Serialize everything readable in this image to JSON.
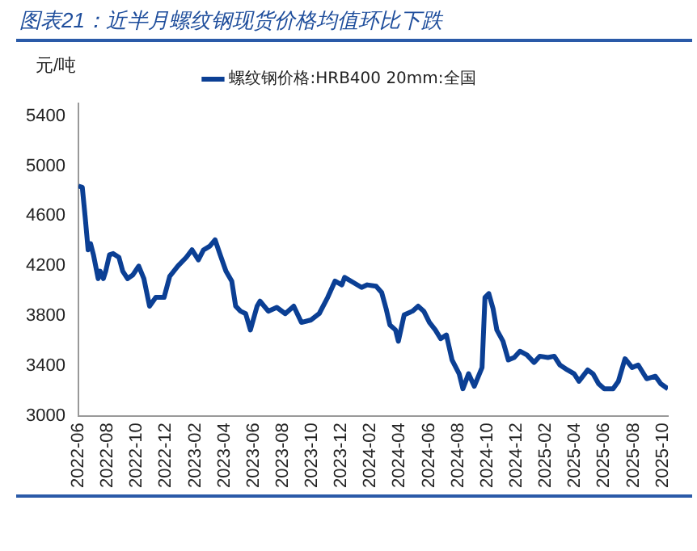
{
  "chart_data": {
    "type": "line",
    "title": "图表21：近半月螺纹钢现货价格均值环比下跌",
    "ylabel": "元/吨",
    "legend": "top",
    "xlim": [
      "2022-06",
      "2025-10-12"
    ],
    "xticks": [
      "2022-06",
      "2022-08",
      "2022-10",
      "2022-12",
      "2023-02",
      "2023-04",
      "2023-06",
      "2023-08",
      "2023-10",
      "2023-12",
      "2024-02",
      "2024-04",
      "2024-06",
      "2024-08",
      "2024-10",
      "2024-12",
      "2025-02",
      "2025-04",
      "2025-06",
      "2025-08",
      "2025-10"
    ],
    "ylim": [
      3000,
      5500
    ],
    "yticks": [
      3000,
      3400,
      3800,
      4200,
      4600,
      5000,
      5400
    ],
    "grid": false,
    "marker": "none",
    "line_style": "solid",
    "series": [
      {
        "name": "螺纹钢价格:HRB400 20mm:全国",
        "color": "#0b3f94",
        "x": [
          "2022-06-01",
          "2022-06-09",
          "2022-06-15",
          "2022-06-21",
          "2022-06-26",
          "2022-07-02",
          "2022-07-12",
          "2022-07-16",
          "2022-07-23",
          "2022-07-28",
          "2022-08-05",
          "2022-08-13",
          "2022-08-25",
          "2022-09-02",
          "2022-09-12",
          "2022-09-23",
          "2022-10-05",
          "2022-10-16",
          "2022-10-28",
          "2022-11-10",
          "2022-11-27",
          "2022-12-09",
          "2022-12-26",
          "2023-01-13",
          "2023-01-25",
          "2023-02-07",
          "2023-02-17",
          "2023-03-01",
          "2023-03-12",
          "2023-03-23",
          "2023-04-04",
          "2023-04-16",
          "2023-04-24",
          "2023-05-04",
          "2023-05-15",
          "2023-05-25",
          "2023-06-08",
          "2023-06-14",
          "2023-07-01",
          "2023-07-19",
          "2023-08-06",
          "2023-08-24",
          "2023-09-09",
          "2023-09-29",
          "2023-10-16",
          "2023-11-03",
          "2023-11-18",
          "2023-12-02",
          "2023-12-08",
          "2023-12-26",
          "2024-01-13",
          "2024-01-25",
          "2024-02-12",
          "2024-02-23",
          "2024-03-03",
          "2024-03-11",
          "2024-03-23",
          "2024-03-29",
          "2024-04-10",
          "2024-04-27",
          "2024-05-09",
          "2024-05-21",
          "2024-06-02",
          "2024-06-14",
          "2024-06-25",
          "2024-07-07",
          "2024-07-19",
          "2024-08-03",
          "2024-08-11",
          "2024-08-23",
          "2024-09-04",
          "2024-09-20",
          "2024-09-26",
          "2024-10-04",
          "2024-10-13",
          "2024-10-21",
          "2024-11-03",
          "2024-11-14",
          "2024-11-26",
          "2024-12-08",
          "2024-12-23",
          "2025-01-07",
          "2025-01-19",
          "2025-02-05",
          "2025-02-17",
          "2025-02-28",
          "2025-03-16",
          "2025-03-30",
          "2025-04-09",
          "2025-04-27",
          "2025-05-08",
          "2025-05-20",
          "2025-06-01",
          "2025-06-19",
          "2025-06-30",
          "2025-07-14",
          "2025-07-29",
          "2025-08-11",
          "2025-08-29",
          "2025-09-16",
          "2025-09-27",
          "2025-10-12"
        ],
        "values": [
          4840,
          4830,
          4590,
          4330,
          4380,
          4290,
          4100,
          4160,
          4100,
          4160,
          4290,
          4300,
          4270,
          4160,
          4100,
          4130,
          4200,
          4100,
          3880,
          3950,
          3950,
          4120,
          4200,
          4270,
          4330,
          4250,
          4330,
          4360,
          4410,
          4290,
          4160,
          4080,
          3880,
          3840,
          3820,
          3690,
          3880,
          3920,
          3840,
          3870,
          3820,
          3880,
          3750,
          3770,
          3820,
          3950,
          4080,
          4050,
          4110,
          4070,
          4030,
          4050,
          4040,
          3990,
          3860,
          3730,
          3690,
          3600,
          3810,
          3840,
          3880,
          3840,
          3750,
          3690,
          3620,
          3650,
          3450,
          3340,
          3220,
          3340,
          3240,
          3390,
          3950,
          3980,
          3860,
          3690,
          3600,
          3450,
          3470,
          3520,
          3490,
          3430,
          3480,
          3470,
          3480,
          3410,
          3370,
          3340,
          3280,
          3370,
          3340,
          3260,
          3220,
          3220,
          3280,
          3460,
          3390,
          3410,
          3300,
          3320,
          3260,
          3220
        ]
      }
    ]
  }
}
